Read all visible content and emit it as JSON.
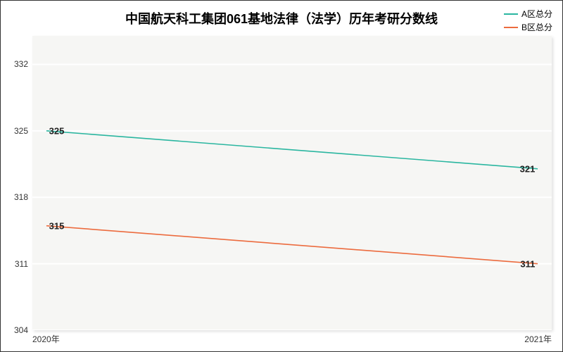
{
  "chart": {
    "type": "line",
    "title": "中国航天科工集团061基地法律（法学）历年考研分数线",
    "title_fontsize": 18,
    "background_color": "#ffffff",
    "plot_background_color": "#f6f6f4",
    "grid_color": "#ffffff",
    "label_fontsize": 12,
    "data_label_fontsize": 13,
    "x_categories": [
      "2020年",
      "2021年"
    ],
    "ylim": [
      304,
      335
    ],
    "yticks": [
      304,
      311,
      318,
      325,
      332
    ],
    "series": [
      {
        "name": "A区总分",
        "color": "#2ab6a0",
        "values": [
          325,
          321
        ],
        "line_width": 1.6
      },
      {
        "name": "B区总分",
        "color": "#ec6b3e",
        "values": [
          315,
          311
        ],
        "line_width": 1.6
      }
    ],
    "legend": {
      "position": "top-right"
    }
  }
}
